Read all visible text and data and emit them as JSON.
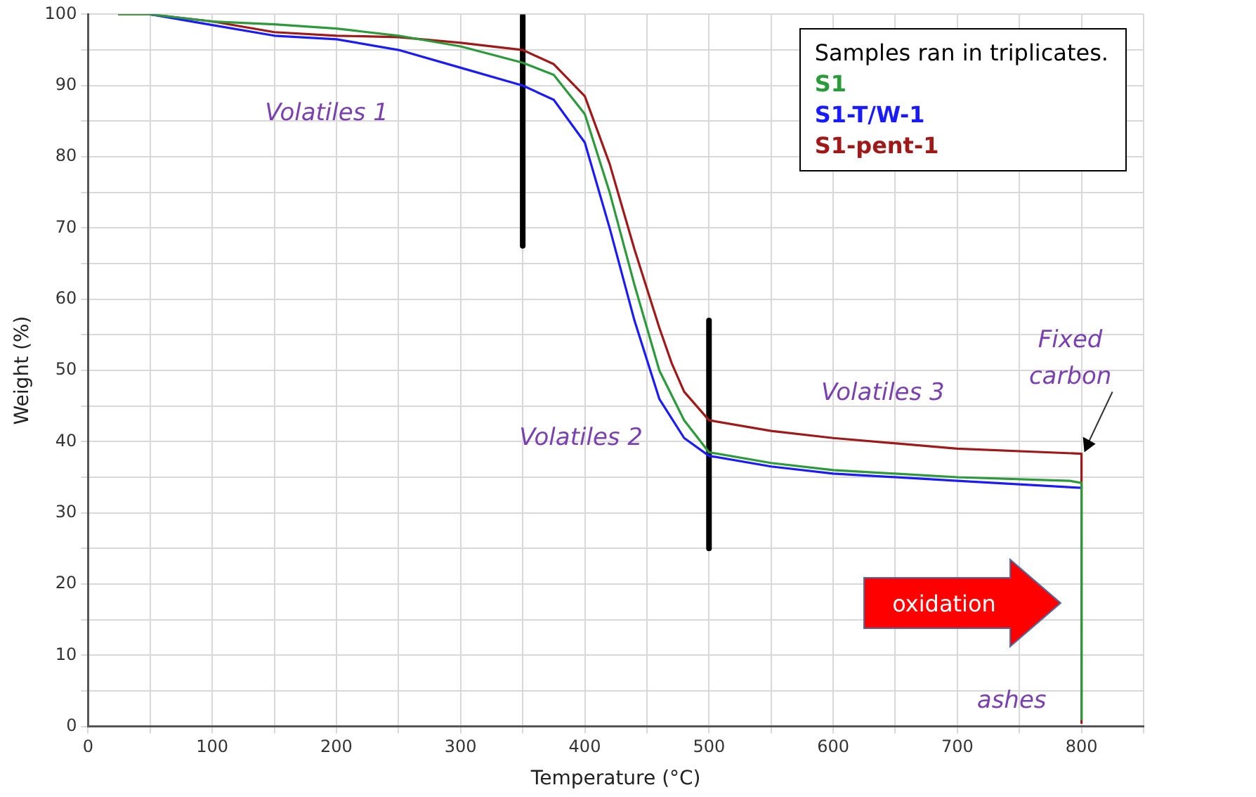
{
  "chart_data": {
    "type": "line",
    "xlabel": "Temperature (°C)",
    "ylabel": "Weight (%)",
    "legend_title": "Samples ran in triplicates.",
    "legend": "top right",
    "xlim": [
      0,
      850
    ],
    "ylim": [
      0,
      100
    ],
    "xticks": [
      0,
      {
        "value": 50,
        "label": null
      },
      100,
      {
        "value": 150,
        "label": null
      },
      200,
      {
        "value": 250,
        "label": null
      },
      300,
      {
        "value": 350,
        "label": null
      },
      400,
      {
        "value": 450,
        "label": null
      },
      500,
      {
        "value": 550,
        "label": null
      },
      600,
      {
        "value": 650,
        "label": null
      },
      700,
      {
        "value": 750,
        "label": null
      },
      800,
      {
        "value": 850,
        "label": null
      }
    ],
    "yticks": [
      0,
      {
        "value": 5,
        "label": null
      },
      10,
      {
        "value": 15,
        "label": null
      },
      20,
      {
        "value": 25,
        "label": null
      },
      30,
      {
        "value": 35,
        "label": null
      },
      40,
      {
        "value": 45,
        "label": null
      },
      50,
      {
        "value": 55,
        "label": null
      },
      60,
      {
        "value": 65,
        "label": null
      },
      70,
      {
        "value": 75,
        "label": null
      },
      80,
      {
        "value": 85,
        "label": null
      },
      90,
      {
        "value": 95,
        "label": null
      },
      100
    ],
    "grid": true,
    "marker": "none",
    "line_style": "solid",
    "series": [
      {
        "name": "S1",
        "color": "#2a9a3a",
        "x": [
          25,
          50,
          100,
          150,
          200,
          250,
          300,
          350,
          375,
          400,
          420,
          440,
          460,
          480,
          500,
          550,
          600,
          700,
          790,
          800,
          800
        ],
        "values": [
          100,
          100,
          99,
          98.6,
          98,
          97,
          95.5,
          93.2,
          91.5,
          86,
          75,
          62,
          50,
          43,
          38.5,
          37,
          36,
          35,
          34.5,
          34.2,
          1
        ]
      },
      {
        "name": "S1-T/W-1",
        "color": "#1a1aff",
        "x": [
          50,
          100,
          150,
          200,
          250,
          300,
          350,
          375,
          400,
          420,
          440,
          460,
          480,
          500,
          550,
          600,
          700,
          800
        ],
        "values": [
          100,
          98.5,
          97,
          96.5,
          95,
          92.5,
          90,
          88,
          82,
          70,
          57,
          46,
          40.5,
          38,
          36.5,
          35.5,
          34.5,
          33.5
        ]
      },
      {
        "name": "S1-pent-1",
        "color": "#a01818",
        "x": [
          25,
          50,
          100,
          150,
          200,
          250,
          300,
          350,
          375,
          400,
          420,
          440,
          460,
          470,
          480,
          500,
          550,
          600,
          700,
          800,
          800
        ],
        "values": [
          100,
          100,
          99,
          97.5,
          97,
          96.8,
          96,
          95,
          93,
          88.5,
          79,
          67,
          56,
          51,
          47,
          43,
          41.5,
          40.5,
          39,
          38.3,
          0.5
        ]
      },
      {
        "color": "#000000",
        "x": [
          350,
          350
        ],
        "values": [
          67.5,
          99.8
        ]
      },
      {
        "color": "#000000",
        "x": [
          500,
          500
        ],
        "values": [
          25,
          57
        ]
      }
    ],
    "annotations": [
      "Volatiles 1",
      "Volatiles 2",
      "Volatiles 3",
      "ashes",
      {
        "text": "Fixed\ncarbon",
        "x": 800,
        "y": 38.3
      },
      "oxidation"
    ]
  }
}
